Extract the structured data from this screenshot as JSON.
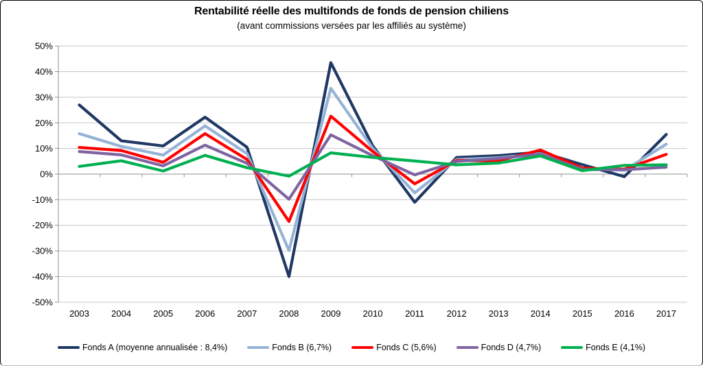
{
  "chart_data": {
    "type": "line",
    "title": "Rentabilité réelle des multifonds de fonds de pension chiliens",
    "subtitle": "(avant commissions versées par les affiliés au système)",
    "categories": [
      "2003",
      "2004",
      "2005",
      "2006",
      "2007",
      "2008",
      "2009",
      "2010",
      "2011",
      "2012",
      "2013",
      "2014",
      "2015",
      "2016",
      "2017"
    ],
    "y_ticks": [
      "50%",
      "40%",
      "30%",
      "20%",
      "10%",
      "0%",
      "-10%",
      "-20%",
      "-30%",
      "-40%",
      "-50%"
    ],
    "ylim": [
      -50,
      50
    ],
    "y_step": 10,
    "grid": true,
    "legend_position": "bottom",
    "colors": {
      "background": "#FFFFFF",
      "gridline": "#C6C6C6",
      "axis": "#8F8F8F",
      "text": "#000000"
    },
    "series": [
      {
        "name": "Fonds A (moyenne annualisée : 8,4%)",
        "color": "#1F3864",
        "values": [
          27,
          13,
          11,
          22.2,
          10.5,
          -40,
          43.5,
          11,
          -11,
          6.5,
          7.2,
          8.6,
          3.7,
          -1,
          15.5
        ]
      },
      {
        "name": "Fonds B (6,7%)",
        "color": "#95B3D7",
        "values": [
          15.8,
          10.8,
          7.4,
          18.8,
          8,
          -29.8,
          33.5,
          10,
          -7.3,
          5.7,
          6.4,
          8.0,
          2.1,
          1.5,
          11.7
        ]
      },
      {
        "name": "Fonds C (5,6%)",
        "color": "#FF0000",
        "values": [
          10.4,
          9.2,
          4.6,
          15.8,
          5.7,
          -18.5,
          22.6,
          8.8,
          -3.8,
          5.3,
          5.2,
          9.4,
          2.3,
          1.9,
          7.7
        ]
      },
      {
        "name": "Fonds D (4,7%)",
        "color": "#8064A2",
        "values": [
          8.8,
          7.5,
          3.2,
          11.3,
          4.2,
          -9.8,
          15.3,
          7.2,
          -0.3,
          4.9,
          6.1,
          7.8,
          1.8,
          1.7,
          2.7
        ]
      },
      {
        "name": "Fonds E (4,1%)",
        "color": "#00B050",
        "values": [
          3,
          5.2,
          1.2,
          7.3,
          2.5,
          -0.8,
          8.3,
          6.5,
          5.1,
          3.6,
          4.3,
          7.1,
          1.3,
          3.4,
          3.6
        ]
      }
    ]
  }
}
